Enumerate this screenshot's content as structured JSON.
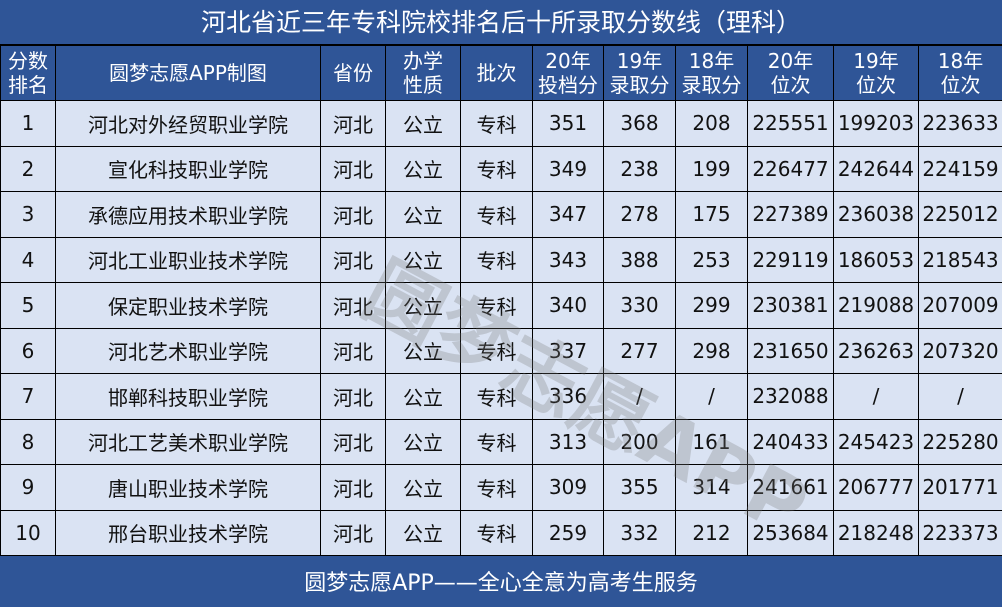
{
  "title": "河北省近三年专科院校排名后十所录取分数线（理科）",
  "headers": [
    "分数\n排名",
    "圆梦志愿APP制图",
    "省份",
    "办学\n性质",
    "批次",
    "20年\n投档分",
    "19年\n录取分",
    "18年\n录取分",
    "20年\n位次",
    "19年\n位次",
    "18年\n位次"
  ],
  "rows": [
    [
      "1",
      "河北对外经贸职业学院",
      "河北",
      "公立",
      "专科",
      "351",
      "368",
      "208",
      "225551",
      "199203",
      "223633"
    ],
    [
      "2",
      "宣化科技职业学院",
      "河北",
      "公立",
      "专科",
      "349",
      "238",
      "199",
      "226477",
      "242644",
      "224159"
    ],
    [
      "3",
      "承德应用技术职业学院",
      "河北",
      "公立",
      "专科",
      "347",
      "278",
      "175",
      "227389",
      "236038",
      "225012"
    ],
    [
      "4",
      "河北工业职业技术学院",
      "河北",
      "公立",
      "专科",
      "343",
      "388",
      "253",
      "229119",
      "186053",
      "218543"
    ],
    [
      "5",
      "保定职业技术学院",
      "河北",
      "公立",
      "专科",
      "340",
      "330",
      "299",
      "230381",
      "219088",
      "207009"
    ],
    [
      "6",
      "河北艺术职业学院",
      "河北",
      "公立",
      "专科",
      "337",
      "277",
      "298",
      "231650",
      "236263",
      "207320"
    ],
    [
      "7",
      "邯郸科技职业学院",
      "河北",
      "公立",
      "专科",
      "336",
      "/",
      "/",
      "232088",
      "/",
      "/"
    ],
    [
      "8",
      "河北工艺美术职业学院",
      "河北",
      "公立",
      "专科",
      "313",
      "200",
      "161",
      "240433",
      "245423",
      "225280"
    ],
    [
      "9",
      "唐山职业技术学院",
      "河北",
      "公立",
      "专科",
      "309",
      "355",
      "314",
      "241661",
      "206777",
      "201771"
    ],
    [
      "10",
      "邢台职业技术学院",
      "河北",
      "公立",
      "专科",
      "259",
      "332",
      "212",
      "253684",
      "218248",
      "223373"
    ]
  ],
  "watermark": "圆梦志愿APP",
  "footer": "圆梦志愿APP——全心全意为高考生服务",
  "colors": {
    "header_bg": "#2f5597",
    "row_bg": "#dae3f3"
  }
}
